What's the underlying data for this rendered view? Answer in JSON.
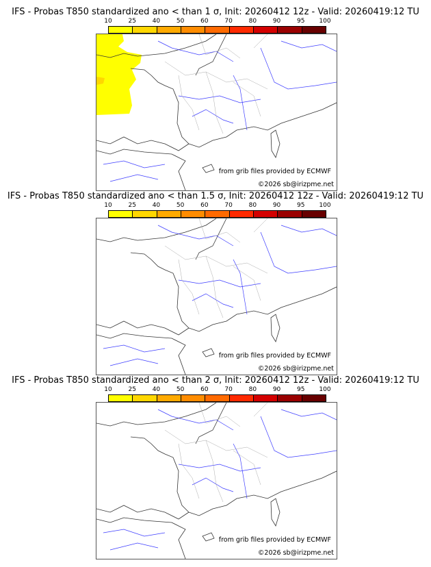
{
  "panels": [
    {
      "title": "IFS - Probas T850  standardized ano < than 1 σ, Init: 20260412 12z - Valid: 20260419:12 TU",
      "has_yellow_area": true
    },
    {
      "title": "IFS - Probas T850  standardized ano < than 1.5 σ, Init: 20260412 12z - Valid: 20260419:12 TU",
      "has_yellow_area": false
    },
    {
      "title": "IFS - Probas T850  standardized ano < than 2 σ, Init: 20260412 12z - Valid: 20260419:12 TU",
      "has_yellow_area": false
    }
  ],
  "colorbar": {
    "ticks": [
      "10",
      "25",
      "40",
      "50",
      "60",
      "70",
      "80",
      "90",
      "95",
      "100"
    ],
    "colors": [
      "#ffff00",
      "#ffd700",
      "#ffaa00",
      "#ff8c00",
      "#ff6a00",
      "#ff2a00",
      "#d40000",
      "#9a0000",
      "#680000"
    ]
  },
  "credits": {
    "source": "from grib files provided by ECMWF",
    "copyright": "©2026 sb@irizpme.net"
  }
}
